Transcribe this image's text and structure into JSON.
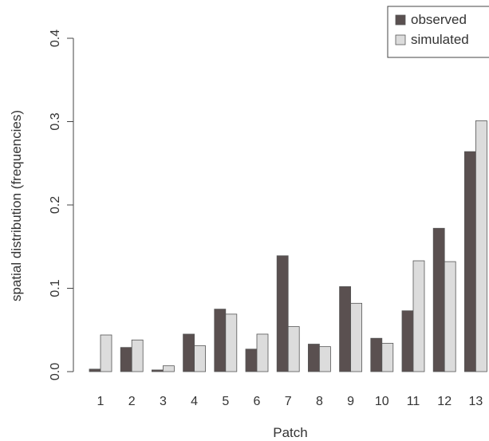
{
  "chart_data": {
    "type": "bar",
    "xlabel": "Patch",
    "ylabel": "spatial distribution (frequencies)",
    "ylim": [
      0,
      0.4
    ],
    "yticks": [
      "0.0",
      "0.1",
      "0.2",
      "0.3",
      "0.4"
    ],
    "categories": [
      "1",
      "2",
      "3",
      "4",
      "5",
      "6",
      "7",
      "8",
      "9",
      "10",
      "11",
      "12",
      "13"
    ],
    "series": [
      {
        "name": "observed",
        "color": "#5a5050",
        "values": [
          0.003,
          0.029,
          0.002,
          0.045,
          0.075,
          0.027,
          0.139,
          0.033,
          0.102,
          0.04,
          0.073,
          0.172,
          0.264
        ]
      },
      {
        "name": "simulated",
        "color": "#dcdcdc",
        "values": [
          0.044,
          0.038,
          0.007,
          0.031,
          0.069,
          0.045,
          0.054,
          0.03,
          0.082,
          0.034,
          0.133,
          0.132,
          0.301
        ]
      }
    ],
    "legend": "top-right",
    "grid": false
  }
}
